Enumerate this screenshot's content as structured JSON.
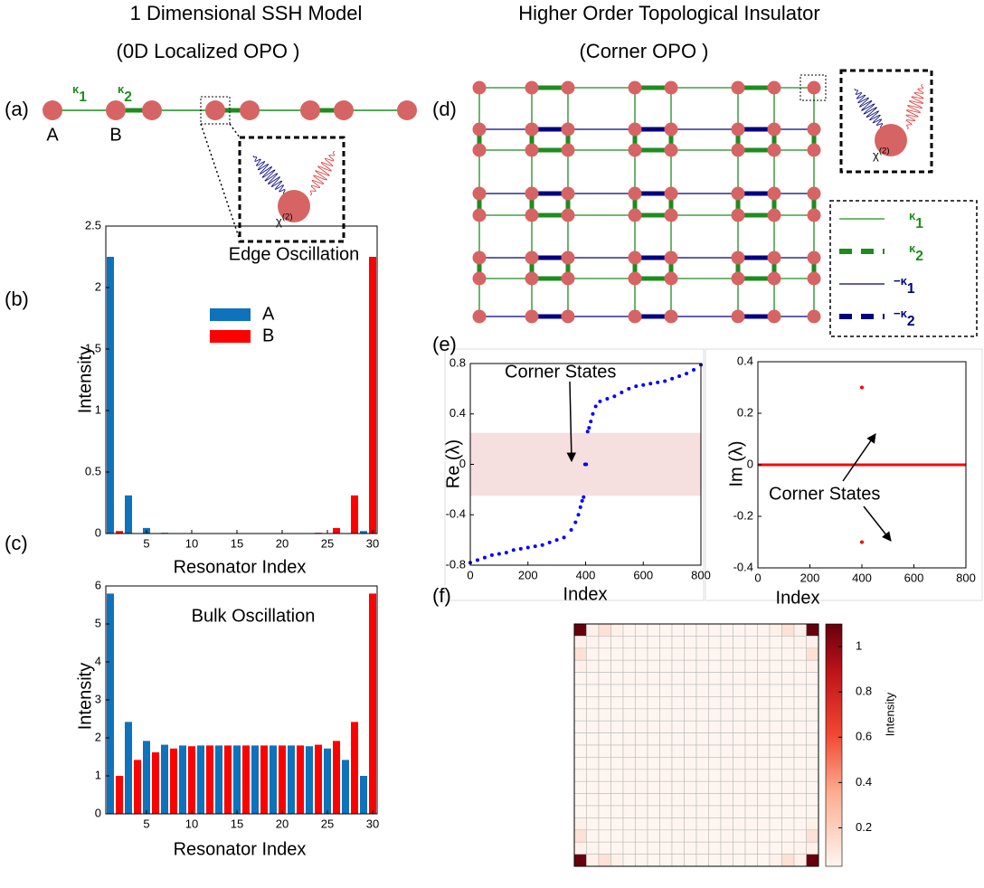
{
  "titles": {
    "left": "1 Dimensional SSH Model",
    "left_sub": "(0D Localized OPO )",
    "right": "Higher Order Topological Insulator",
    "right_sub": "(Corner OPO )"
  },
  "panel_labels": [
    "(a)",
    "(b)",
    "(c)",
    "(d)",
    "(e)",
    "(f)"
  ],
  "diagram_a": {
    "kappa1": {
      "symbol": "κ",
      "sub": "1"
    },
    "kappa2": {
      "symbol": "κ",
      "sub": "2"
    },
    "site_a": "A",
    "site_b": "B",
    "chi": {
      "symbol": "χ",
      "sup": "(2)"
    }
  },
  "diagram_d": {
    "chi": {
      "symbol": "χ",
      "sup": "(2)"
    },
    "legend": [
      {
        "symbol": "κ",
        "sub": "1"
      },
      {
        "symbol": "κ",
        "sub": "2"
      },
      {
        "symbol": "−κ",
        "sub": "1"
      },
      {
        "symbol": "−κ",
        "sub": "2"
      }
    ]
  },
  "chart_data": [
    {
      "type": "bar",
      "title": "Edge Oscillation",
      "x_label": "Resonator Index",
      "y_label": "Intensity",
      "xlim": [
        0.5,
        30.5
      ],
      "xticks": [
        5,
        10,
        15,
        20,
        25,
        30
      ],
      "ylim": [
        0,
        2.5
      ],
      "yticks": [
        0,
        0.5,
        1,
        1.5,
        2,
        2.5
      ],
      "series": [
        {
          "name": "A",
          "color": "#0e72bd",
          "x": [
            1,
            3,
            5,
            7,
            9,
            11,
            13,
            15,
            17,
            19,
            21,
            23,
            25,
            27,
            29
          ],
          "values": [
            2.25,
            0.31,
            0.045,
            0.006,
            0.001,
            0,
            0,
            0,
            0,
            0,
            0,
            0,
            0.001,
            0.003,
            0.02
          ]
        },
        {
          "name": "B",
          "color": "#ff0000",
          "x": [
            2,
            4,
            6,
            8,
            10,
            12,
            14,
            16,
            18,
            20,
            22,
            24,
            26,
            28,
            30
          ],
          "values": [
            0.02,
            0.003,
            0.001,
            0,
            0,
            0,
            0,
            0,
            0,
            0,
            0.001,
            0.006,
            0.045,
            0.31,
            2.25
          ]
        }
      ]
    },
    {
      "type": "bar",
      "title": "Bulk Oscillation",
      "x_label": "Resonator Index",
      "y_label": "Intensity",
      "xlim": [
        0.5,
        30.5
      ],
      "xticks": [
        5,
        10,
        15,
        20,
        25,
        30
      ],
      "ylim": [
        0,
        6
      ],
      "yticks": [
        0,
        1,
        2,
        3,
        4,
        5,
        6
      ],
      "series": [
        {
          "color": "#0e72bd",
          "x": [
            1,
            3,
            5,
            7,
            9,
            11,
            13,
            15,
            17,
            19,
            21,
            23,
            25,
            27,
            29
          ],
          "values": [
            5.8,
            2.42,
            1.92,
            1.82,
            1.8,
            1.8,
            1.8,
            1.8,
            1.8,
            1.8,
            1.8,
            1.78,
            1.72,
            1.42,
            1.0
          ]
        },
        {
          "color": "#ff0000",
          "x": [
            2,
            4,
            6,
            8,
            10,
            12,
            14,
            16,
            18,
            20,
            22,
            24,
            26,
            28,
            30
          ],
          "values": [
            1.0,
            1.42,
            1.62,
            1.72,
            1.78,
            1.8,
            1.8,
            1.8,
            1.8,
            1.8,
            1.8,
            1.82,
            1.92,
            2.42,
            5.8
          ]
        }
      ]
    },
    {
      "type": "scatter",
      "x_label": "Index",
      "y_label": "Re (λ)",
      "annotation": "Corner States",
      "xlim": [
        0,
        800
      ],
      "xticks": [
        0,
        200,
        400,
        600,
        800
      ],
      "ylim": [
        -0.8,
        0.8
      ],
      "yticks": [
        -0.8,
        -0.4,
        0,
        0.4,
        0.8
      ],
      "band": [
        -0.25,
        0.25
      ],
      "band_color": "#f5dfdf",
      "series": [
        {
          "color": "#0000ff",
          "style": "dots",
          "x": [
            0,
            25,
            50,
            75,
            100,
            125,
            150,
            175,
            200,
            225,
            250,
            275,
            300,
            325,
            350,
            365,
            375,
            382,
            388,
            393,
            398,
            402,
            407,
            412,
            418,
            425,
            435,
            450,
            475,
            500,
            525,
            550,
            575,
            600,
            625,
            650,
            675,
            700,
            725,
            750,
            775,
            800
          ],
          "values": [
            -0.78,
            -0.76,
            -0.74,
            -0.72,
            -0.71,
            -0.7,
            -0.68,
            -0.67,
            -0.66,
            -0.65,
            -0.64,
            -0.62,
            -0.6,
            -0.58,
            -0.52,
            -0.46,
            -0.4,
            -0.34,
            -0.29,
            -0.26,
            0,
            0,
            0.26,
            0.29,
            0.34,
            0.4,
            0.46,
            0.5,
            0.52,
            0.54,
            0.57,
            0.6,
            0.62,
            0.63,
            0.64,
            0.65,
            0.66,
            0.68,
            0.7,
            0.72,
            0.75,
            0.79
          ]
        }
      ]
    },
    {
      "type": "scatter",
      "x_label": "Index",
      "y_label": "Im (λ)",
      "annotation": "Corner States",
      "xlim": [
        0,
        800
      ],
      "xticks": [
        0,
        200,
        400,
        600,
        800
      ],
      "ylim": [
        -0.4,
        0.4
      ],
      "yticks": [
        -0.4,
        -0.2,
        0,
        0.2,
        0.4
      ],
      "series": [
        {
          "color": "#ff0000",
          "style": "line",
          "x": [
            0,
            800
          ],
          "values": [
            0,
            0
          ]
        },
        {
          "color": "#ff0000",
          "style": "dots",
          "x": [
            400,
            400
          ],
          "values": [
            0.3,
            -0.3
          ]
        }
      ]
    },
    {
      "type": "heatmap",
      "colorbar_label": "Intensity",
      "zlim": [
        0.03,
        1.1
      ],
      "zticks": [
        0.2,
        0.4,
        0.6,
        0.8,
        1
      ],
      "z": [
        [
          1.1,
          0.05,
          0.12,
          0.05,
          0.03,
          0.03,
          0.03,
          0.03,
          0.03,
          0.03,
          0.03,
          0.03,
          0.03,
          0.03,
          0.03,
          0.03,
          0.05,
          0.12,
          0.05,
          1.1
        ],
        [
          0.05,
          0.04,
          0.03,
          0.03,
          0.03,
          0.03,
          0.03,
          0.03,
          0.03,
          0.03,
          0.03,
          0.03,
          0.03,
          0.03,
          0.03,
          0.03,
          0.03,
          0.03,
          0.04,
          0.05
        ],
        [
          0.12,
          0.03,
          0.03,
          0.03,
          0.03,
          0.03,
          0.03,
          0.03,
          0.03,
          0.03,
          0.03,
          0.03,
          0.03,
          0.03,
          0.03,
          0.03,
          0.03,
          0.03,
          0.03,
          0.12
        ],
        [
          0.05,
          0.03,
          0.03,
          0.03,
          0.03,
          0.03,
          0.03,
          0.03,
          0.03,
          0.03,
          0.03,
          0.03,
          0.03,
          0.03,
          0.03,
          0.03,
          0.03,
          0.03,
          0.03,
          0.05
        ],
        [
          0.03,
          0.03,
          0.03,
          0.03,
          0.03,
          0.03,
          0.03,
          0.03,
          0.03,
          0.03,
          0.03,
          0.03,
          0.03,
          0.03,
          0.03,
          0.03,
          0.03,
          0.03,
          0.03,
          0.03
        ],
        [
          0.03,
          0.03,
          0.03,
          0.03,
          0.03,
          0.03,
          0.03,
          0.03,
          0.03,
          0.03,
          0.03,
          0.03,
          0.03,
          0.03,
          0.03,
          0.03,
          0.03,
          0.03,
          0.03,
          0.03
        ],
        [
          0.03,
          0.03,
          0.03,
          0.03,
          0.03,
          0.03,
          0.03,
          0.03,
          0.03,
          0.03,
          0.03,
          0.03,
          0.03,
          0.03,
          0.03,
          0.03,
          0.03,
          0.03,
          0.03,
          0.03
        ],
        [
          0.03,
          0.03,
          0.03,
          0.03,
          0.03,
          0.03,
          0.03,
          0.03,
          0.03,
          0.03,
          0.03,
          0.03,
          0.03,
          0.03,
          0.03,
          0.03,
          0.03,
          0.03,
          0.03,
          0.03
        ],
        [
          0.03,
          0.03,
          0.03,
          0.03,
          0.03,
          0.03,
          0.03,
          0.03,
          0.03,
          0.03,
          0.03,
          0.03,
          0.03,
          0.03,
          0.03,
          0.03,
          0.03,
          0.03,
          0.03,
          0.03
        ],
        [
          0.03,
          0.03,
          0.03,
          0.03,
          0.03,
          0.03,
          0.03,
          0.03,
          0.03,
          0.03,
          0.03,
          0.03,
          0.03,
          0.03,
          0.03,
          0.03,
          0.03,
          0.03,
          0.03,
          0.03
        ],
        [
          0.03,
          0.03,
          0.03,
          0.03,
          0.03,
          0.03,
          0.03,
          0.03,
          0.03,
          0.03,
          0.03,
          0.03,
          0.03,
          0.03,
          0.03,
          0.03,
          0.03,
          0.03,
          0.03,
          0.03
        ],
        [
          0.03,
          0.03,
          0.03,
          0.03,
          0.03,
          0.03,
          0.03,
          0.03,
          0.03,
          0.03,
          0.03,
          0.03,
          0.03,
          0.03,
          0.03,
          0.03,
          0.03,
          0.03,
          0.03,
          0.03
        ],
        [
          0.03,
          0.03,
          0.03,
          0.03,
          0.03,
          0.03,
          0.03,
          0.03,
          0.03,
          0.03,
          0.03,
          0.03,
          0.03,
          0.03,
          0.03,
          0.03,
          0.03,
          0.03,
          0.03,
          0.03
        ],
        [
          0.03,
          0.03,
          0.03,
          0.03,
          0.03,
          0.03,
          0.03,
          0.03,
          0.03,
          0.03,
          0.03,
          0.03,
          0.03,
          0.03,
          0.03,
          0.03,
          0.03,
          0.03,
          0.03,
          0.03
        ],
        [
          0.03,
          0.03,
          0.03,
          0.03,
          0.03,
          0.03,
          0.03,
          0.03,
          0.03,
          0.03,
          0.03,
          0.03,
          0.03,
          0.03,
          0.03,
          0.03,
          0.03,
          0.03,
          0.03,
          0.03
        ],
        [
          0.03,
          0.03,
          0.03,
          0.03,
          0.03,
          0.03,
          0.03,
          0.03,
          0.03,
          0.03,
          0.03,
          0.03,
          0.03,
          0.03,
          0.03,
          0.03,
          0.03,
          0.03,
          0.03,
          0.03
        ],
        [
          0.05,
          0.03,
          0.03,
          0.03,
          0.03,
          0.03,
          0.03,
          0.03,
          0.03,
          0.03,
          0.03,
          0.03,
          0.03,
          0.03,
          0.03,
          0.03,
          0.03,
          0.03,
          0.03,
          0.05
        ],
        [
          0.12,
          0.03,
          0.03,
          0.03,
          0.03,
          0.03,
          0.03,
          0.03,
          0.03,
          0.03,
          0.03,
          0.03,
          0.03,
          0.03,
          0.03,
          0.03,
          0.03,
          0.03,
          0.03,
          0.12
        ],
        [
          0.05,
          0.04,
          0.03,
          0.03,
          0.03,
          0.03,
          0.03,
          0.03,
          0.03,
          0.03,
          0.03,
          0.03,
          0.03,
          0.03,
          0.03,
          0.03,
          0.03,
          0.03,
          0.04,
          0.05
        ],
        [
          1.1,
          0.05,
          0.12,
          0.05,
          0.03,
          0.03,
          0.03,
          0.03,
          0.03,
          0.03,
          0.03,
          0.03,
          0.03,
          0.03,
          0.03,
          0.03,
          0.05,
          0.12,
          0.05,
          1.1
        ]
      ]
    }
  ]
}
